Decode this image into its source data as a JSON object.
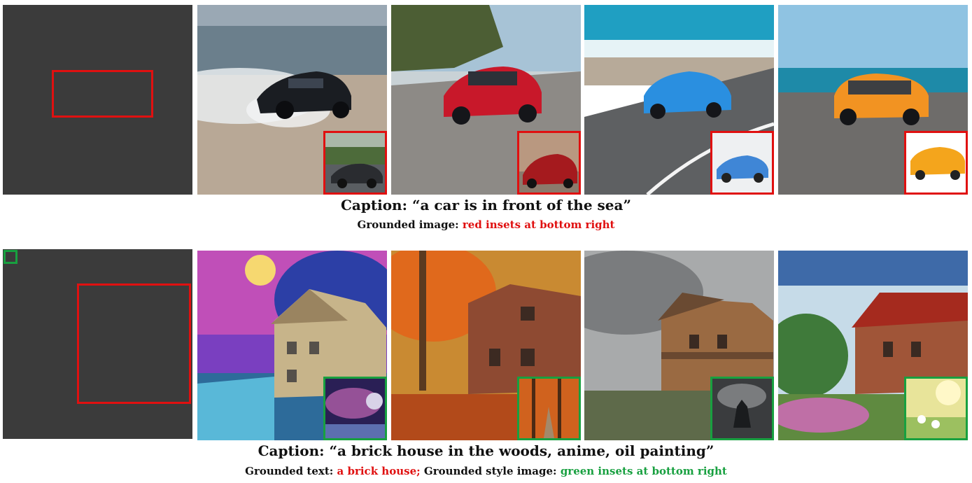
{
  "row1": {
    "caption_label": "Caption:",
    "caption_text": "“a car is in front of the sea”",
    "grounded_label": "Grounded image:",
    "grounded_value": "red insets at bottom right",
    "images": [
      {
        "kind": "layout"
      },
      {
        "kind": "black supercar drifting on beach"
      },
      {
        "kind": "red sedan on coastal road"
      },
      {
        "kind": "blue sports car on seaside road"
      },
      {
        "kind": "orange wagon parked by the sea"
      }
    ]
  },
  "row2": {
    "caption_label": "Caption:",
    "caption_text": "“a brick house in the woods, anime, oil painting”",
    "grounded_text_label": "Grounded text:",
    "grounded_text_value": "a brick house;",
    "grounded_style_label": "Grounded style image:",
    "grounded_style_value": "green insets at bottom right",
    "images": [
      {
        "kind": "layout"
      },
      {
        "kind": "stone house under moon, colorful"
      },
      {
        "kind": "brick house in autumn woods"
      },
      {
        "kind": "brick house in stormy gray"
      },
      {
        "kind": "red roof brick house with flowers"
      }
    ]
  },
  "colors": {
    "red": "#e01010",
    "green": "#18a040",
    "layout_bg": "#3b3b3b"
  }
}
